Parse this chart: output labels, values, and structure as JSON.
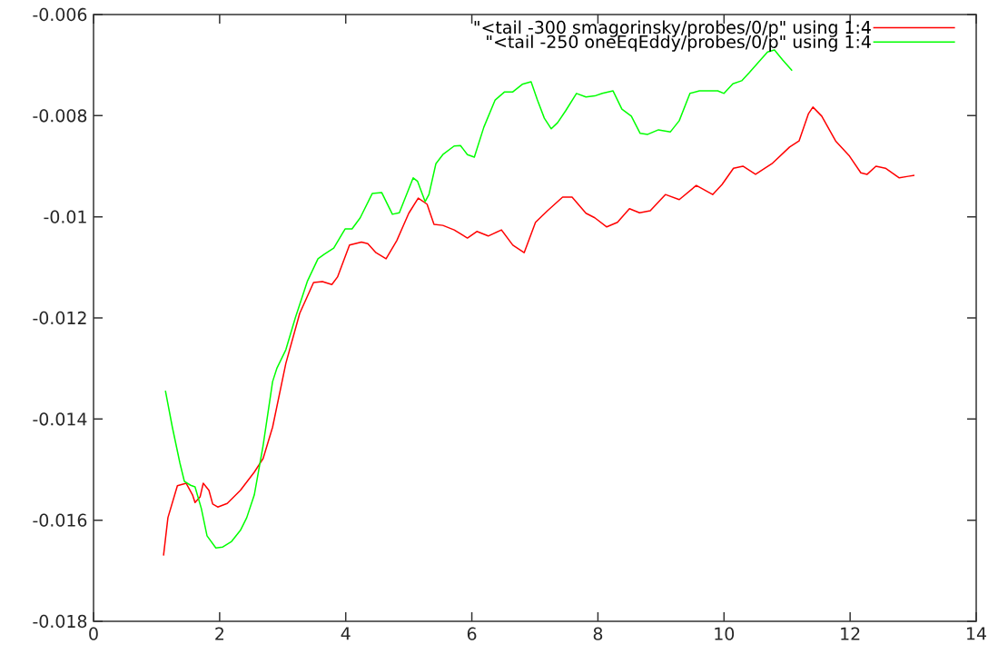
{
  "chart_data": {
    "type": "line",
    "xlim": [
      0,
      14
    ],
    "xticks": [
      0,
      2,
      4,
      6,
      8,
      10,
      12,
      14
    ],
    "ylim": [
      -0.018,
      -0.006
    ],
    "yticks": [
      -0.018,
      -0.016,
      -0.014,
      -0.012,
      -0.01,
      -0.008,
      -0.006
    ],
    "legend": "top right",
    "grid": false,
    "series": [
      {
        "name": "\"<tail -300 smagorinsky/probes/0/p\" using 1:4",
        "color": "#ff0000",
        "x": [
          1.11,
          1.18,
          1.33,
          1.47,
          1.57,
          1.61,
          1.69,
          1.74,
          1.83,
          1.89,
          1.97,
          2.12,
          2.33,
          2.55,
          2.69,
          2.84,
          3.05,
          3.27,
          3.49,
          3.63,
          3.78,
          3.87,
          4.06,
          4.25,
          4.35,
          4.48,
          4.64,
          4.81,
          5.0,
          5.15,
          5.29,
          5.4,
          5.54,
          5.72,
          5.93,
          6.08,
          6.26,
          6.47,
          6.65,
          6.83,
          7.01,
          7.2,
          7.44,
          7.59,
          7.81,
          7.95,
          8.14,
          8.31,
          8.5,
          8.66,
          8.83,
          9.07,
          9.29,
          9.56,
          9.82,
          9.97,
          10.15,
          10.3,
          10.5,
          10.76,
          11.04,
          11.19,
          11.34,
          11.41,
          11.55,
          11.77,
          11.99,
          12.17,
          12.27,
          12.41,
          12.56,
          12.78,
          12.92,
          13.02
        ],
        "values": [
          -0.0167,
          -0.01595,
          -0.01532,
          -0.01527,
          -0.0155,
          -0.01565,
          -0.01554,
          -0.01527,
          -0.01541,
          -0.01568,
          -0.01574,
          -0.01567,
          -0.01541,
          -0.01505,
          -0.01478,
          -0.01416,
          -0.0129,
          -0.01191,
          -0.0113,
          -0.01128,
          -0.01134,
          -0.01119,
          -0.01056,
          -0.0105,
          -0.01053,
          -0.01071,
          -0.01083,
          -0.01047,
          -0.00993,
          -0.00963,
          -0.00975,
          -0.01015,
          -0.01017,
          -0.01026,
          -0.01042,
          -0.01029,
          -0.01038,
          -0.01026,
          -0.01056,
          -0.01071,
          -0.01011,
          -0.00988,
          -0.00961,
          -0.00961,
          -0.00993,
          -0.01002,
          -0.0102,
          -0.01011,
          -0.00984,
          -0.00992,
          -0.00988,
          -0.00956,
          -0.00966,
          -0.00938,
          -0.00956,
          -0.00936,
          -0.00904,
          -0.009,
          -0.00916,
          -0.00895,
          -0.00862,
          -0.0085,
          -0.00796,
          -0.00783,
          -0.00801,
          -0.0085,
          -0.0088,
          -0.00913,
          -0.00916,
          -0.009,
          -0.00904,
          -0.00923,
          -0.0092,
          -0.00918
        ]
      },
      {
        "name": "\"<tail -250 oneEqEddy/probes/0/p\" using 1:4",
        "color": "#00ff00",
        "x": [
          1.14,
          1.25,
          1.37,
          1.44,
          1.54,
          1.61,
          1.71,
          1.8,
          1.94,
          2.05,
          2.19,
          2.33,
          2.43,
          2.55,
          2.69,
          2.84,
          2.91,
          3.05,
          3.2,
          3.39,
          3.56,
          3.66,
          3.81,
          3.99,
          4.1,
          4.23,
          4.42,
          4.57,
          4.74,
          4.85,
          5.07,
          5.14,
          5.26,
          5.32,
          5.43,
          5.54,
          5.72,
          5.82,
          5.93,
          6.04,
          6.19,
          6.37,
          6.52,
          6.65,
          6.8,
          6.94,
          7.04,
          7.15,
          7.26,
          7.36,
          7.49,
          7.66,
          7.81,
          7.95,
          8.07,
          8.24,
          8.38,
          8.53,
          8.67,
          8.79,
          8.96,
          9.15,
          9.29,
          9.46,
          9.61,
          9.9,
          10.0,
          10.14,
          10.28,
          10.4,
          10.69,
          10.8,
          10.93,
          11.08
        ],
        "values": [
          -0.01344,
          -0.01416,
          -0.01487,
          -0.01523,
          -0.01531,
          -0.01534,
          -0.01577,
          -0.01631,
          -0.01655,
          -0.01653,
          -0.01642,
          -0.0162,
          -0.01595,
          -0.0155,
          -0.01452,
          -0.01326,
          -0.01299,
          -0.01263,
          -0.012,
          -0.01128,
          -0.01083,
          -0.01074,
          -0.01062,
          -0.01024,
          -0.01024,
          -0.01002,
          -0.00954,
          -0.00952,
          -0.00995,
          -0.00992,
          -0.00923,
          -0.0093,
          -0.0097,
          -0.00956,
          -0.00895,
          -0.00877,
          -0.0086,
          -0.00859,
          -0.00877,
          -0.00882,
          -0.00823,
          -0.00769,
          -0.00753,
          -0.00753,
          -0.00738,
          -0.00733,
          -0.00769,
          -0.00805,
          -0.00826,
          -0.00814,
          -0.0079,
          -0.00756,
          -0.00763,
          -0.00761,
          -0.00756,
          -0.00751,
          -0.00787,
          -0.00801,
          -0.00835,
          -0.00837,
          -0.00828,
          -0.00832,
          -0.0081,
          -0.00756,
          -0.00751,
          -0.00751,
          -0.00756,
          -0.00737,
          -0.00731,
          -0.00715,
          -0.00674,
          -0.0067,
          -0.0069,
          -0.00711
        ]
      }
    ]
  }
}
